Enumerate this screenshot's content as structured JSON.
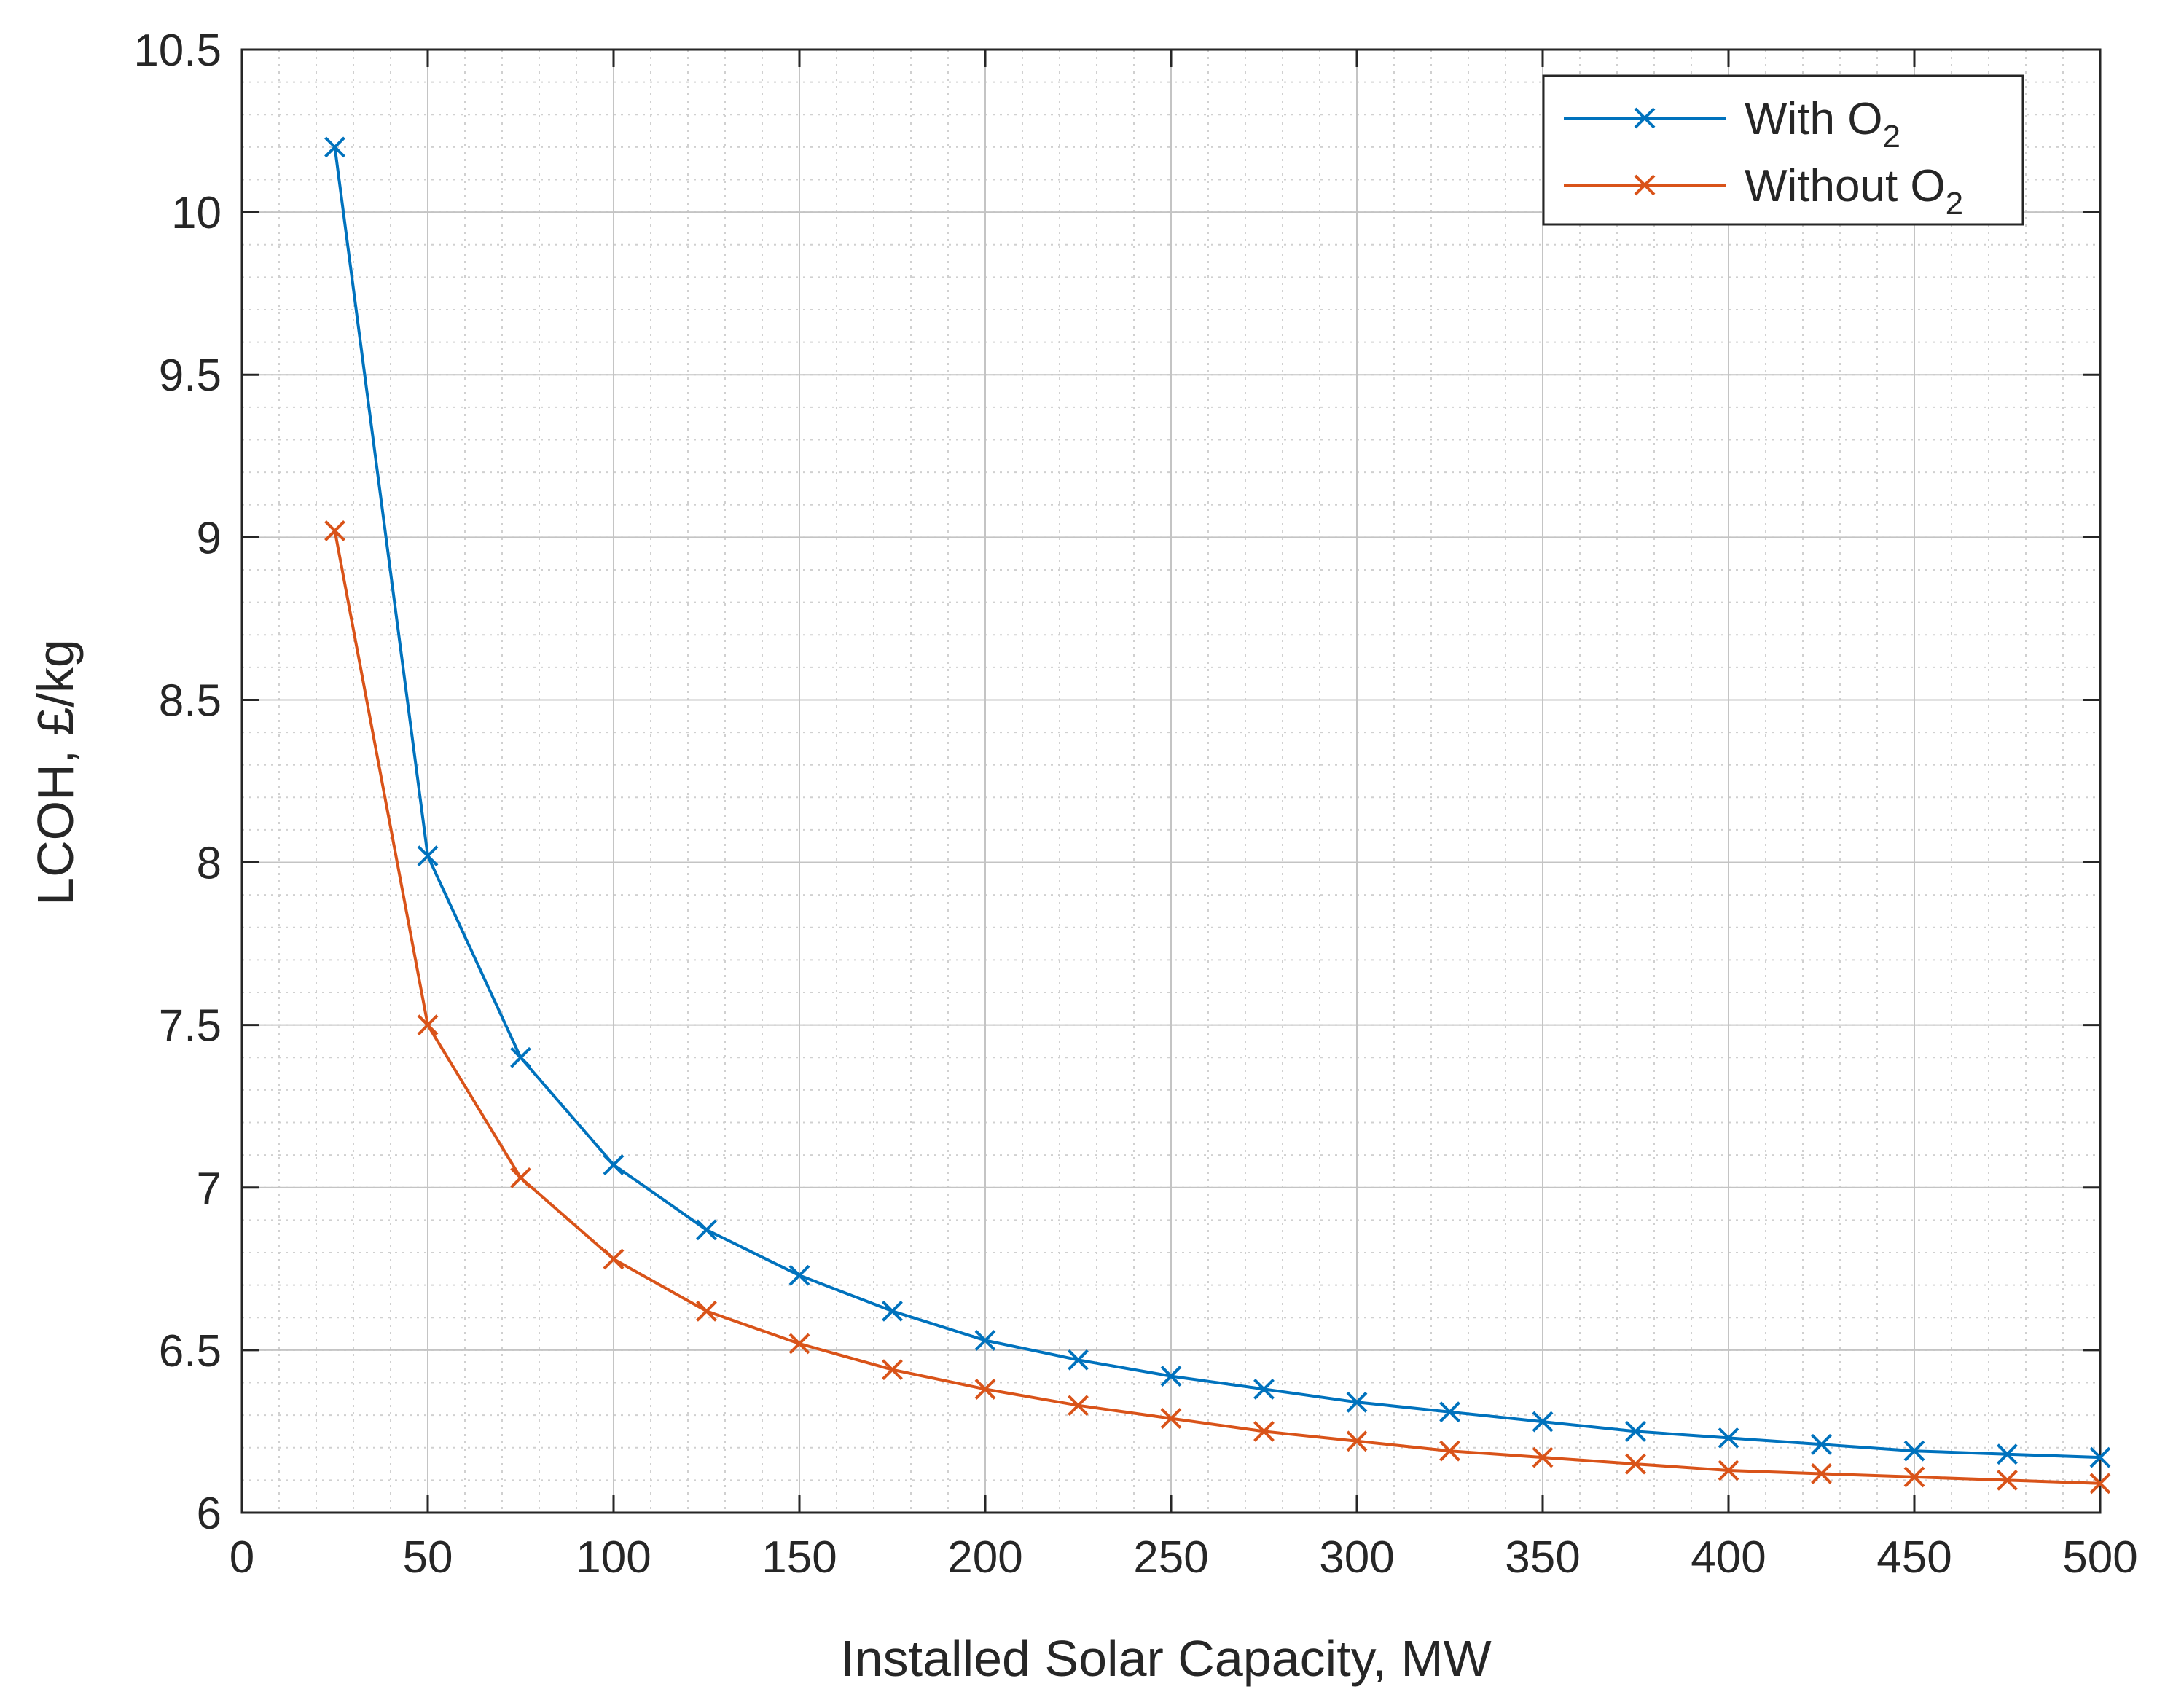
{
  "chart_data": {
    "type": "line",
    "title": "",
    "xlabel": "Installed Solar Capacity, MW",
    "ylabel": "LCOH, £/kg",
    "xlim": [
      0,
      500
    ],
    "ylim": [
      6,
      10.5
    ],
    "xticks": [
      "0",
      "50",
      "100",
      "150",
      "200",
      "250",
      "300",
      "350",
      "400",
      "450",
      "500"
    ],
    "yticks": [
      "6",
      "6.5",
      "7",
      "7.5",
      "8",
      "8.5",
      "9",
      "9.5",
      "10",
      "10.5"
    ],
    "grid": true,
    "minor_grid": true,
    "legend_position": "top-right",
    "x": [
      25,
      50,
      75,
      100,
      125,
      150,
      175,
      200,
      225,
      250,
      275,
      300,
      325,
      350,
      375,
      400,
      425,
      450,
      475,
      500
    ],
    "series": [
      {
        "name": "With O",
        "subscript": "2",
        "color": "#0072BD",
        "marker": "x",
        "values": [
          10.2,
          8.02,
          7.4,
          7.07,
          6.87,
          6.73,
          6.62,
          6.53,
          6.47,
          6.42,
          6.38,
          6.34,
          6.31,
          6.28,
          6.25,
          6.23,
          6.21,
          6.19,
          6.18,
          6.17
        ]
      },
      {
        "name": "Without O",
        "subscript": "2",
        "color": "#D95319",
        "marker": "x",
        "values": [
          9.02,
          7.5,
          7.03,
          6.78,
          6.62,
          6.52,
          6.44,
          6.38,
          6.33,
          6.29,
          6.25,
          6.22,
          6.19,
          6.17,
          6.15,
          6.13,
          6.12,
          6.11,
          6.1,
          6.09
        ]
      }
    ]
  }
}
